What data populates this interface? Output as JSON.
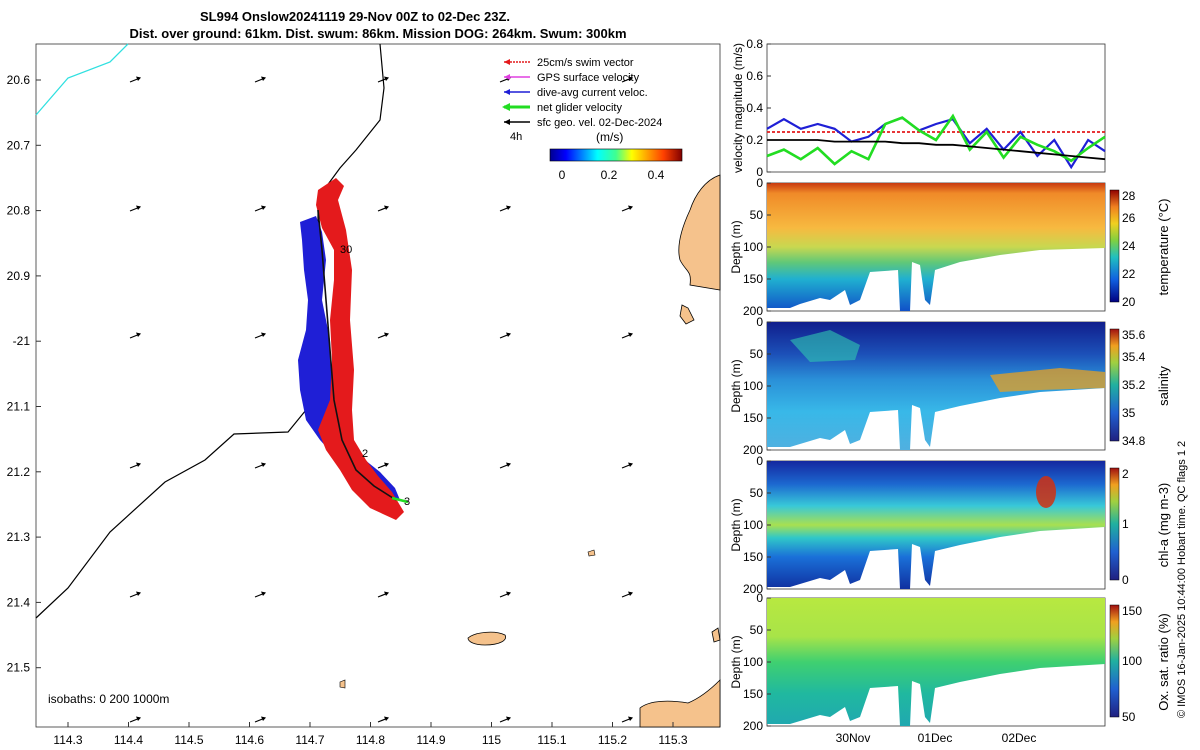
{
  "title": {
    "line1": "SL994 Onslow20241119 29-Nov 00Z to 02-Dec 23Z.",
    "line2": "Dist. over ground: 61km. Dist. swum: 86km. Mission DOG: 264km. Swum: 300km"
  },
  "map": {
    "lon_ticks": [
      "114.3",
      "114.4",
      "114.5",
      "114.6",
      "114.7",
      "114.8",
      "114.9",
      "115",
      "115.1",
      "115.2",
      "115.3"
    ],
    "lat_ticks": [
      "20.6",
      "20.7",
      "20.8",
      "20.9",
      "-21",
      "21.1",
      "21.2",
      "21.3",
      "21.4",
      "21.5"
    ],
    "legend": [
      {
        "label": "25cm/s swim vector",
        "color": "#e41a1c"
      },
      {
        "label": "GPS surface velocity",
        "color": "#e040e0"
      },
      {
        "label": "dive-avg current veloc.",
        "color": "#1f1fd6"
      },
      {
        "label": "net glider velocity",
        "color": "#22dd22"
      },
      {
        "label": "sfc geo. vel. 02-Dec-2024",
        "color": "#000000"
      }
    ],
    "time_step_label": "4h",
    "colorbar_unit": "(m/s)",
    "colorbar_ticks": [
      "0",
      "0.2",
      "0.4"
    ],
    "isobaths_label": "isobaths: 0   200  1000m",
    "day_labels": [
      "30",
      "2",
      "3"
    ]
  },
  "velocity_panel": {
    "ylabel": "velocity magnitude (m/s)",
    "yticks": [
      "0",
      "0.2",
      "0.4",
      "0.6",
      "0.8"
    ],
    "ylim": [
      0,
      0.8
    ]
  },
  "section_panels": [
    {
      "name": "temperature",
      "label": "temperature (°C)",
      "ticks": [
        "20",
        "22",
        "24",
        "26",
        "28"
      ]
    },
    {
      "name": "salinity",
      "label": "salinity",
      "ticks": [
        "34.8",
        "35",
        "35.2",
        "35.4",
        "35.6"
      ]
    },
    {
      "name": "chla",
      "label": "chl-a (mg m-3)",
      "ticks": [
        "0",
        "1",
        "2"
      ]
    },
    {
      "name": "oxygen",
      "label": "Ox. sat. ratio (%)",
      "ticks": [
        "50",
        "100",
        "150"
      ]
    }
  ],
  "depth_axis": {
    "ylabel": "Depth (m)",
    "ticks": [
      "0",
      "50",
      "100",
      "150",
      "200"
    ]
  },
  "time_axis": {
    "ticks": [
      "30Nov",
      "01Dec",
      "02Dec"
    ]
  },
  "footer": "© IMOS 16-Jan-2025 10:44:00 Hobart time. QC flags 1  2",
  "chart_data": [
    {
      "type": "line",
      "title": "velocity magnitude",
      "ylabel": "velocity magnitude (m/s)",
      "ylim": [
        0,
        0.8
      ],
      "x": [
        0,
        0.05,
        0.1,
        0.15,
        0.2,
        0.25,
        0.3,
        0.35,
        0.4,
        0.45,
        0.5,
        0.55,
        0.6,
        0.65,
        0.7,
        0.75,
        0.8,
        0.85,
        0.9,
        0.95,
        1.0
      ],
      "series": [
        {
          "name": "25cm/s swim vector",
          "color": "#e41a1c",
          "values": [
            0.25,
            0.25,
            0.25,
            0.25,
            0.25,
            0.25,
            0.25,
            0.25,
            0.25,
            0.25,
            0.25,
            0.25,
            0.25,
            0.25,
            0.25,
            0.25,
            0.25,
            0.25,
            0.25,
            0.25,
            0.25
          ]
        },
        {
          "name": "dive-avg current veloc.",
          "color": "#1f1fd6",
          "values": [
            0.27,
            0.33,
            0.27,
            0.3,
            0.27,
            0.19,
            0.22,
            0.3,
            0.34,
            0.26,
            0.3,
            0.33,
            0.18,
            0.27,
            0.14,
            0.25,
            0.1,
            0.2,
            0.03,
            0.2,
            0.13
          ]
        },
        {
          "name": "net glider velocity",
          "color": "#22dd22",
          "values": [
            0.1,
            0.14,
            0.08,
            0.15,
            0.05,
            0.13,
            0.08,
            0.3,
            0.34,
            0.26,
            0.2,
            0.35,
            0.14,
            0.25,
            0.09,
            0.22,
            0.17,
            0.13,
            0.07,
            0.15,
            0.22
          ]
        },
        {
          "name": "sfc geo. vel.",
          "color": "#000000",
          "values": [
            0.2,
            0.2,
            0.2,
            0.2,
            0.19,
            0.19,
            0.19,
            0.19,
            0.18,
            0.18,
            0.17,
            0.17,
            0.16,
            0.15,
            0.14,
            0.13,
            0.12,
            0.11,
            0.1,
            0.09,
            0.08
          ]
        }
      ]
    }
  ]
}
